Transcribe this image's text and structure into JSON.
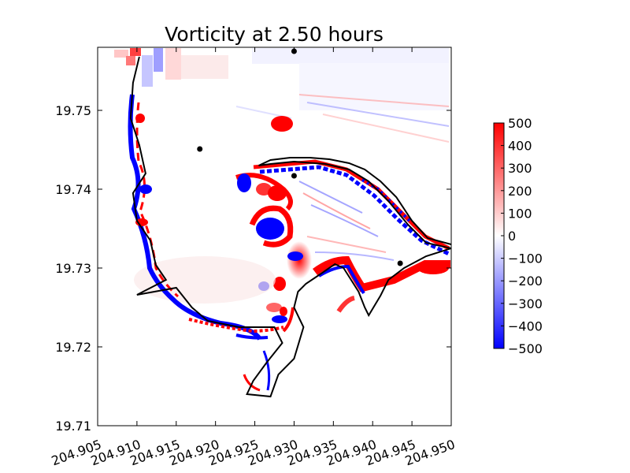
{
  "chart_data": {
    "type": "heatmap",
    "title": "Vorticity at 2.50 hours",
    "xlabel": "",
    "ylabel": "",
    "xlim": [
      204.905,
      204.95
    ],
    "ylim": [
      19.71,
      19.758
    ],
    "x_ticks": [
      "204.905",
      "204.910",
      "204.915",
      "204.920",
      "204.925",
      "204.930",
      "204.935",
      "204.940",
      "204.945",
      "204.950"
    ],
    "y_ticks": [
      "19.71",
      "19.72",
      "19.73",
      "19.74",
      "19.75"
    ],
    "colorbar": {
      "min": -500,
      "max": 500,
      "ticks": [
        "500",
        "400",
        "300",
        "200",
        "100",
        "0",
        "−100",
        "−200",
        "−300",
        "−400",
        "−500"
      ],
      "colormap": [
        "#0000ff",
        "#ffffff",
        "#ff0000"
      ]
    },
    "markers": [
      {
        "x": 204.93,
        "y": 19.7575
      },
      {
        "x": 204.918,
        "y": 19.7451
      },
      {
        "x": 204.93,
        "y": 19.7417
      },
      {
        "x": 204.9435,
        "y": 19.7306
      }
    ],
    "coastline": [
      [
        204.9103,
        19.7568
      ],
      [
        204.9095,
        19.7535
      ],
      [
        204.9092,
        19.749
      ],
      [
        204.9103,
        19.7456
      ],
      [
        204.9111,
        19.742
      ],
      [
        204.9095,
        19.7395
      ],
      [
        204.91,
        19.736
      ],
      [
        204.9117,
        19.7335
      ],
      [
        204.9124,
        19.7304
      ],
      [
        204.9137,
        19.7285
      ],
      [
        204.91,
        19.7266
      ],
      [
        204.915,
        19.7275
      ],
      [
        204.917,
        19.725
      ],
      [
        204.919,
        19.7233
      ],
      [
        204.923,
        19.7225
      ],
      [
        204.9275,
        19.7225
      ],
      [
        204.9285,
        19.7205
      ],
      [
        204.9265,
        19.718
      ],
      [
        204.9248,
        19.7157
      ],
      [
        204.924,
        19.714
      ],
      [
        204.927,
        19.7137
      ],
      [
        204.928,
        19.7165
      ],
      [
        204.93,
        19.7185
      ],
      [
        204.9312,
        19.7225
      ],
      [
        204.93,
        19.725
      ],
      [
        204.9305,
        19.727
      ],
      [
        204.9315,
        19.728
      ],
      [
        204.933,
        19.729
      ],
      [
        204.9352,
        19.7305
      ],
      [
        204.9363,
        19.73
      ],
      [
        204.9382,
        19.727
      ],
      [
        204.939,
        19.725
      ],
      [
        204.9395,
        19.724
      ],
      [
        204.941,
        19.7265
      ],
      [
        204.942,
        19.7285
      ],
      [
        204.944,
        19.73
      ],
      [
        204.9468,
        19.7315
      ],
      [
        204.95,
        19.7325
      ]
    ],
    "spit": [
      [
        204.95,
        19.733
      ],
      [
        204.947,
        19.7338
      ],
      [
        204.945,
        19.736
      ],
      [
        204.943,
        19.739
      ],
      [
        204.941,
        19.741
      ],
      [
        204.939,
        19.7425
      ],
      [
        204.937,
        19.7433
      ],
      [
        204.9345,
        19.7438
      ],
      [
        204.932,
        19.744
      ],
      [
        204.9295,
        19.744
      ],
      [
        204.927,
        19.7437
      ],
      [
        204.9255,
        19.743
      ],
      [
        204.927,
        19.7432
      ],
      [
        204.93,
        19.7435
      ],
      [
        204.934,
        19.7432
      ],
      [
        204.937,
        19.7425
      ],
      [
        204.9395,
        19.741
      ],
      [
        204.942,
        19.7385
      ],
      [
        204.9445,
        19.7355
      ],
      [
        204.9468,
        19.7332
      ],
      [
        204.95,
        19.7325
      ]
    ]
  }
}
